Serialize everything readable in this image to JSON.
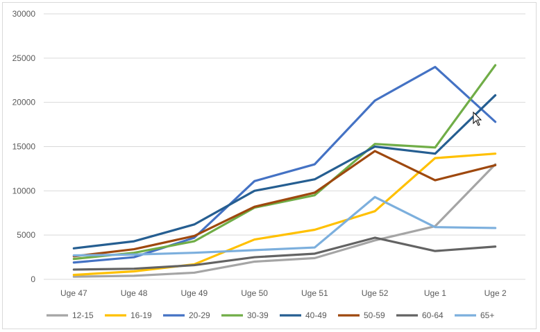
{
  "chart_data": {
    "type": "line",
    "title": "",
    "xlabel": "",
    "ylabel": "",
    "ylim": [
      0,
      30000
    ],
    "yticks": [
      0,
      5000,
      10000,
      15000,
      20000,
      25000,
      30000
    ],
    "yticklabels": [
      "0",
      "5000",
      "10000",
      "15000",
      "20000",
      "25000",
      "30000"
    ],
    "grid": true,
    "legend_position": "bottom",
    "categories": [
      "Uge 47",
      "Uge 48",
      "Uge 49",
      "Uge 50",
      "Uge 51",
      "Uge 52",
      "Uge 1",
      "Uge 2"
    ],
    "series": [
      {
        "name": "12-15",
        "color": "#a5a5a5",
        "values": [
          300,
          400,
          750,
          2000,
          2400,
          4400,
          6000,
          13000
        ]
      },
      {
        "name": "16-19",
        "color": "#ffc000",
        "values": [
          500,
          900,
          1700,
          4500,
          5600,
          7700,
          13700,
          14200
        ]
      },
      {
        "name": "20-29",
        "color": "#4472c4",
        "values": [
          1900,
          2500,
          4700,
          11100,
          13000,
          20200,
          24000,
          17800
        ]
      },
      {
        "name": "30-39",
        "color": "#70ad47",
        "values": [
          2300,
          3000,
          4300,
          8100,
          9500,
          15300,
          14900,
          24200
        ]
      },
      {
        "name": "40-49",
        "color": "#255e91",
        "values": [
          3500,
          4300,
          6200,
          10000,
          11300,
          15000,
          14200,
          20800
        ]
      },
      {
        "name": "50-59",
        "color": "#9e480e",
        "values": [
          2600,
          3400,
          4900,
          8200,
          9800,
          14500,
          11200,
          12900
        ]
      },
      {
        "name": "60-64",
        "color": "#636363",
        "values": [
          1100,
          1200,
          1600,
          2500,
          2900,
          4700,
          3200,
          3700
        ]
      },
      {
        "name": "65+",
        "color": "#7cafdd",
        "values": [
          2700,
          2800,
          3000,
          3300,
          3600,
          9300,
          5900,
          5800
        ]
      }
    ]
  }
}
